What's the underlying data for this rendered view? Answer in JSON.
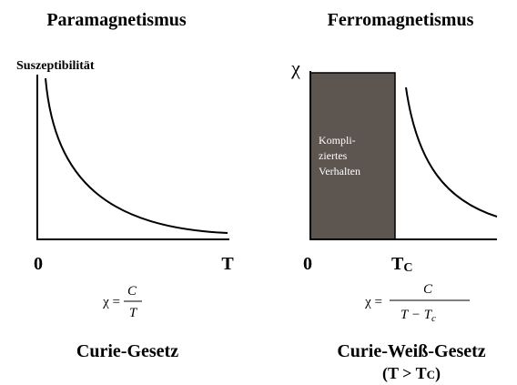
{
  "left": {
    "title": "Paramagnetismus",
    "y_label": "Suszeptibilität",
    "origin": "0",
    "x_label": "T",
    "formula": {
      "lhs": "χ =",
      "numerator": "C",
      "denominator": "T"
    },
    "law": "Curie-Gesetz"
  },
  "right": {
    "title": "Ferromagnetismus",
    "y_label": "χ",
    "origin": "0",
    "x_label": {
      "main": "T",
      "sub": "C"
    },
    "region_label": [
      "Kompli-",
      "ziertes",
      "Verhalten"
    ],
    "formula": {
      "lhs": "χ =",
      "numerator": "C",
      "denominator": {
        "main": "T − T",
        "sub": "c"
      }
    },
    "law": "Curie-Weiß-Gesetz",
    "condition": {
      "pre": "(T > T",
      "sub": "C",
      "post": ")"
    }
  }
}
